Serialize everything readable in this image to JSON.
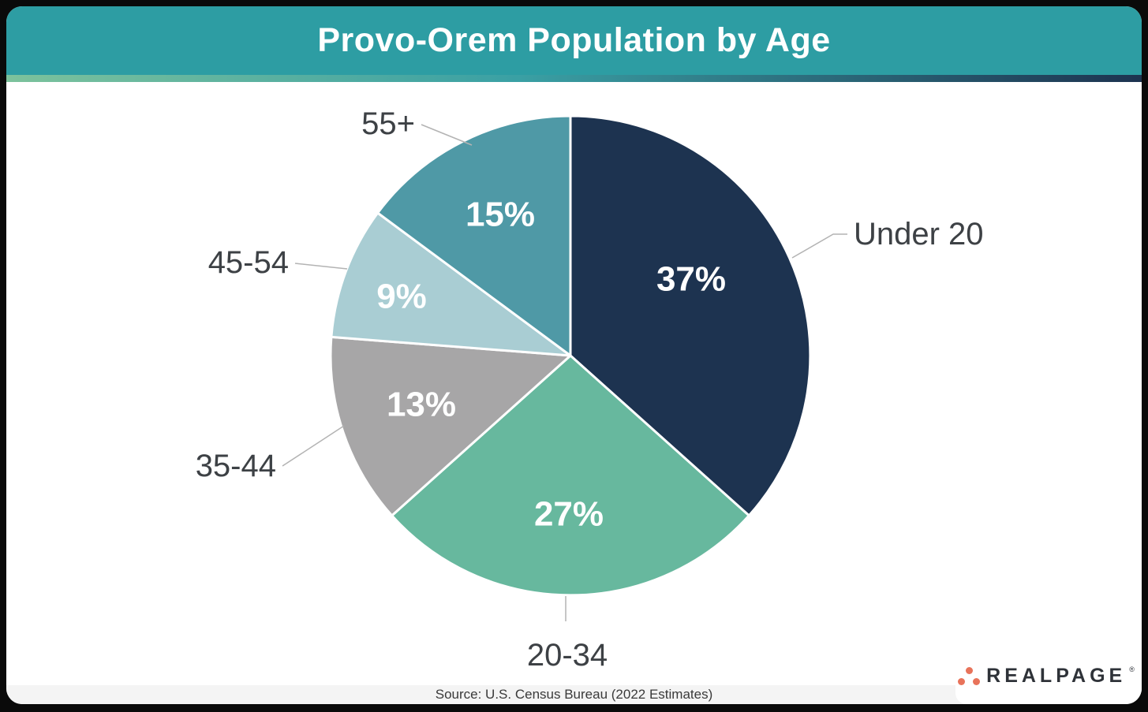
{
  "header": {
    "title": "Provo-Orem Population by Age"
  },
  "chart_data": {
    "type": "pie",
    "title": "Provo-Orem Population by Age",
    "unit": "percent",
    "direction": "clockwise",
    "start_angle": "12-oclock",
    "slices": [
      {
        "label": "Under 20",
        "value": 37,
        "value_label": "37%",
        "color": "#1d3350"
      },
      {
        "label": "20-34",
        "value": 27,
        "value_label": "27%",
        "color": "#67b89e"
      },
      {
        "label": "35-44",
        "value": 13,
        "value_label": "13%",
        "color": "#a7a6a7"
      },
      {
        "label": "45-54",
        "value": 9,
        "value_label": "9%",
        "color": "#a9cdd3"
      },
      {
        "label": "55+",
        "value": 15,
        "value_label": "15%",
        "color": "#4f99a6"
      }
    ],
    "source": "Source: U.S. Census Bureau (2022 Estimates)",
    "legend_position": "none",
    "value_labels": "inside-slices",
    "category_labels": "outside-with-leader-lines"
  },
  "footer": {
    "source": "Source: U.S. Census Bureau (2022 Estimates)",
    "brand": "REALPAGE",
    "trademark": "®"
  },
  "colors": {
    "header_bg": "#2d9da3",
    "accent_gradient_start": "#7cc29c",
    "accent_gradient_mid": "#3aa0a4",
    "accent_gradient_end": "#1d3350",
    "logo_dot": "#e8735a",
    "logo_text": "#2e3238",
    "label_text": "#3d4145",
    "source_bg": "#f4f4f4"
  }
}
